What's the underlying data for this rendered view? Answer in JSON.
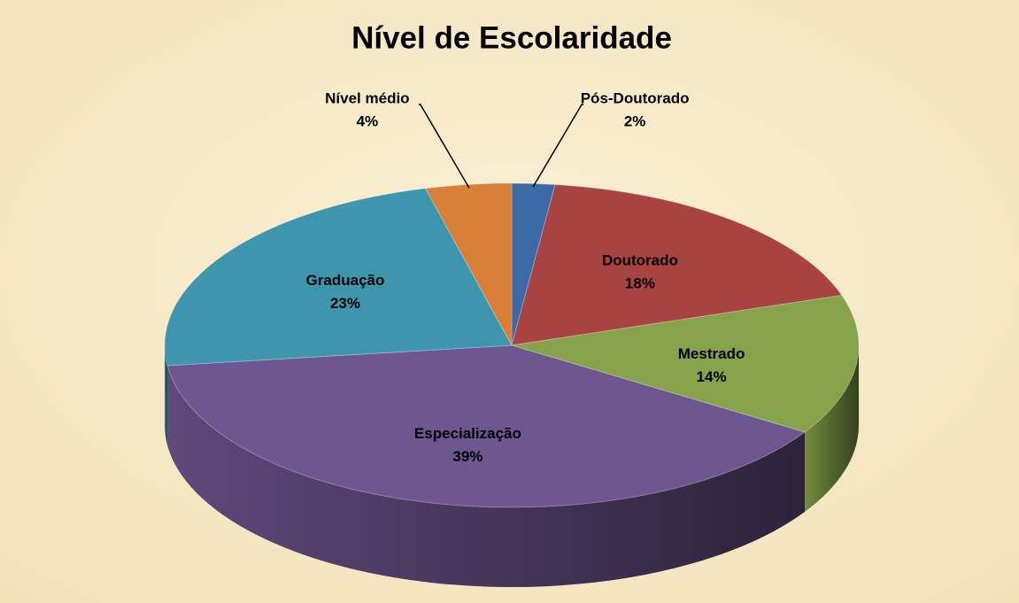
{
  "chart_data": {
    "type": "pie3d",
    "title": "Nível de Escolaridade",
    "categories": [
      "Pós-Doutorado",
      "Doutorado",
      "Mestrado",
      "Especialização",
      "Graduação",
      "Nível médio"
    ],
    "values": [
      2,
      18,
      14,
      39,
      23,
      4
    ],
    "value_labels": [
      "2%",
      "18%",
      "14%",
      "39%",
      "23%",
      "4%"
    ],
    "colors": [
      "#3b6aa6",
      "#a84342",
      "#86a34b",
      "#6e5690",
      "#3d96ad",
      "#d97f37"
    ]
  }
}
